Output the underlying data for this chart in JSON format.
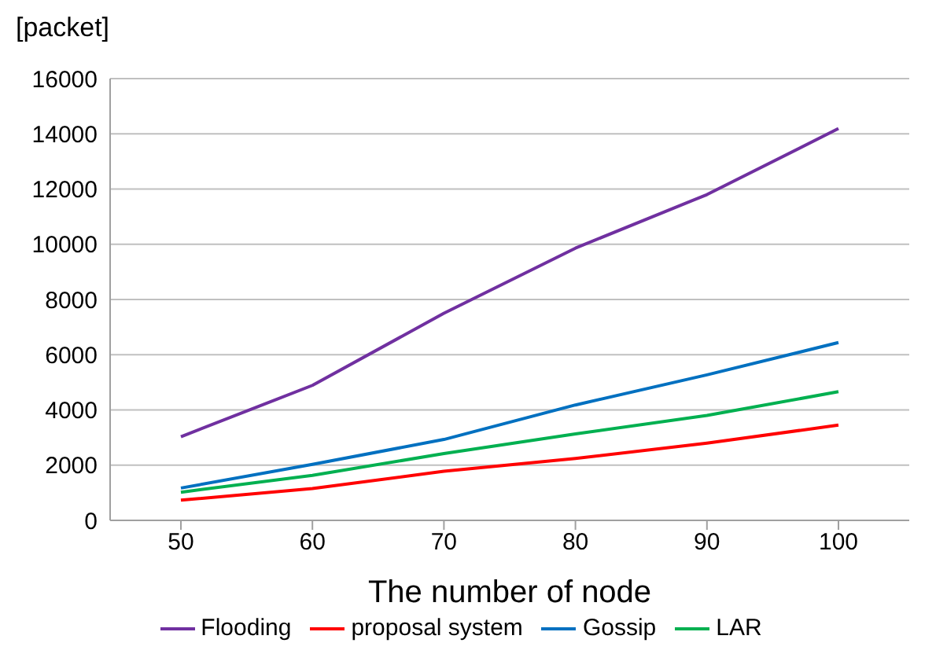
{
  "chart_data": {
    "type": "line",
    "ylabel": "[packet]",
    "xlabel": "The number of node",
    "categories": [
      "50",
      "60",
      "70",
      "80",
      "90",
      "100"
    ],
    "series": [
      {
        "name": "Flooding",
        "color": "#7030a0",
        "values": [
          3030,
          4890,
          7500,
          9860,
          11800,
          14190
        ]
      },
      {
        "name": "proposal system",
        "color": "#ff0000",
        "values": [
          730,
          1150,
          1780,
          2240,
          2800,
          3450
        ]
      },
      {
        "name": "Gossip",
        "color": "#0070c0",
        "values": [
          1170,
          2030,
          2930,
          4180,
          5270,
          6440
        ]
      },
      {
        "name": "LAR",
        "color": "#00b050",
        "values": [
          1020,
          1630,
          2420,
          3130,
          3800,
          4660
        ]
      }
    ],
    "ylim": [
      0,
      16000
    ],
    "yticks": [
      0,
      2000,
      4000,
      6000,
      8000,
      10000,
      12000,
      14000,
      16000
    ],
    "grid": "y",
    "legend": "bottom",
    "marker": "none",
    "line_style": "solid"
  }
}
